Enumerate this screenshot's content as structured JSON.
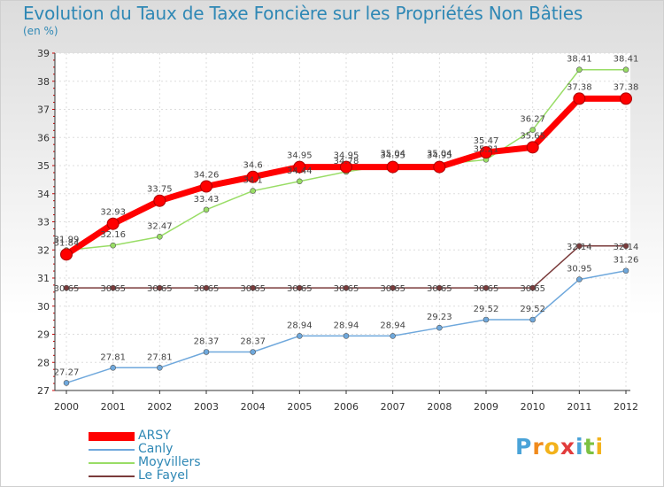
{
  "page": {
    "title": "Evolution du Taux de Taxe Foncière sur les Propriétés Non Bâties",
    "unit": "(en %)",
    "brand": {
      "text": "Proxiti",
      "letters": [
        "P",
        "r",
        "o",
        "x",
        "i",
        "t",
        "i"
      ],
      "colors": [
        "#4aa3d8",
        "#f08a1c",
        "#f3b21b",
        "#e23c3c",
        "#4aa3d8",
        "#7cc142",
        "#f3b21b"
      ]
    }
  },
  "chart_data": {
    "type": "line",
    "title": "Evolution du Taux de Taxe Foncière sur les Propriétés Non Bâties",
    "ylabel": "(en %)",
    "xlabel": "",
    "x": [
      "2000",
      "2001",
      "2002",
      "2003",
      "2004",
      "2005",
      "2006",
      "2007",
      "2008",
      "2009",
      "2010",
      "2011",
      "2012"
    ],
    "ylim": [
      27,
      39
    ],
    "yticks": [
      27,
      28,
      29,
      30,
      31,
      32,
      33,
      34,
      35,
      36,
      37,
      38,
      39
    ],
    "legend_position": "bottom-left",
    "series": [
      {
        "name": "ARSY",
        "color": "#ff0000",
        "values": [
          31.84,
          32.93,
          33.75,
          34.26,
          34.6,
          34.95,
          34.95,
          34.95,
          34.95,
          35.47,
          35.65,
          37.38,
          37.38
        ],
        "labels": [
          "31.84",
          "32.93",
          "33.75",
          "34.26",
          "34.6",
          "34.95",
          "34.95",
          "34.95",
          "34.95",
          "35.47",
          "35.65",
          "37.38",
          "37.38"
        ]
      },
      {
        "name": "Canly",
        "color": "#6fa8dc",
        "values": [
          27.27,
          27.81,
          27.81,
          28.37,
          28.37,
          28.94,
          28.94,
          28.94,
          29.23,
          29.52,
          29.52,
          30.95,
          31.26
        ],
        "labels": [
          "27.27",
          "27.81",
          "27.81",
          "28.37",
          "28.37",
          "28.94",
          "28.94",
          "28.94",
          "29.23",
          "29.52",
          "29.52",
          "30.95",
          "31.26"
        ]
      },
      {
        "name": "Moyvillers",
        "color": "#99dd66",
        "values": [
          31.99,
          32.16,
          32.47,
          33.43,
          34.1,
          34.44,
          34.78,
          35.04,
          35.04,
          35.21,
          36.27,
          38.41,
          38.41
        ],
        "labels": [
          "31.99",
          "32.16",
          "32.47",
          "33.43",
          "34.1",
          "34.44",
          "34.78",
          "35.04",
          "35.04",
          "35.21",
          "36.27",
          "38.41",
          "38.41"
        ]
      },
      {
        "name": "Le Fayel",
        "color": "#7a3b3b",
        "values": [
          30.65,
          30.65,
          30.65,
          30.65,
          30.65,
          30.65,
          30.65,
          30.65,
          30.65,
          30.65,
          30.65,
          32.14,
          32.14
        ],
        "labels": [
          "30.65",
          "30.65",
          "30.65",
          "30.65",
          "30.65",
          "30.65",
          "30.65",
          "30.65",
          "30.65",
          "30.65",
          "30.65",
          "32.14",
          "32.14"
        ]
      }
    ]
  }
}
